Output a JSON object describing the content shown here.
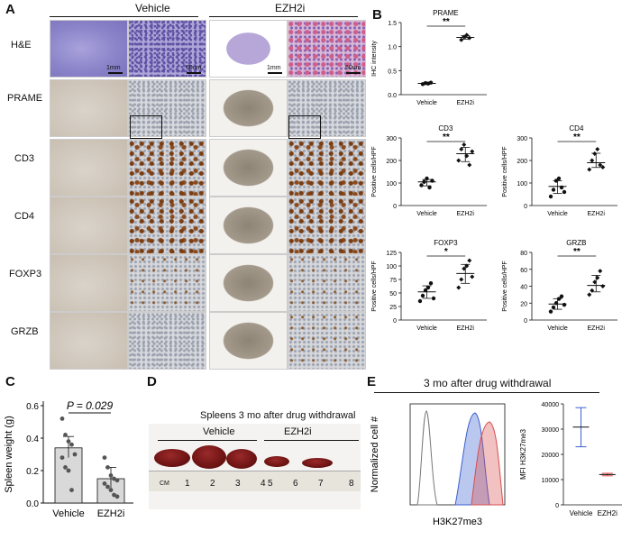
{
  "panelA": {
    "letter": "A",
    "groups": [
      "Vehicle",
      "EZH2i"
    ],
    "rows": [
      "H&E",
      "PRAME",
      "CD3",
      "CD4",
      "FOXP3",
      "GRZB"
    ],
    "scale_low": "1mm",
    "scale_high": "50um"
  },
  "panelB": {
    "letter": "B",
    "charts": [
      {
        "title": "PRAME",
        "ylabel": "IHC intensity",
        "yticks": [
          "0.0",
          "0.5",
          "1.0",
          "1.5"
        ],
        "ylim": [
          0,
          1.5
        ],
        "categories": [
          "Vehicle",
          "EZH2i"
        ],
        "sig": "**",
        "series": [
          {
            "values": [
              [
                0.22,
                0.24,
                0.23,
                0.25
              ],
              [
                1.14,
                1.2,
                1.24,
                1.18
              ]
            ]
          }
        ],
        "means": [
          0.235,
          1.19
        ]
      },
      {
        "title": "CD3",
        "ylabel": "Positive cells/HPF",
        "yticks": [
          "0",
          "100",
          "200",
          "300"
        ],
        "ylim": [
          0,
          300
        ],
        "categories": [
          "Vehicle",
          "EZH2i"
        ],
        "sig": "**",
        "points": [
          [
            90,
            105,
            120,
            80,
            110
          ],
          [
            200,
            250,
            270,
            220,
            180,
            240
          ]
        ],
        "means": [
          105,
          230
        ]
      },
      {
        "title": "CD4",
        "ylabel": "Positive cells/HPF",
        "yticks": [
          "0",
          "100",
          "200",
          "300"
        ],
        "ylim": [
          0,
          300
        ],
        "categories": [
          "Vehicle",
          "EZH2i"
        ],
        "sig": "**",
        "points": [
          [
            40,
            70,
            110,
            120,
            80,
            60
          ],
          [
            160,
            200,
            230,
            250,
            180,
            170
          ]
        ],
        "means": [
          85,
          190
        ]
      },
      {
        "title": "FOXP3",
        "ylabel": "Positive cells/HPF",
        "yticks": [
          "0",
          "25",
          "50",
          "75",
          "100",
          "125"
        ],
        "ylim": [
          0,
          125
        ],
        "categories": [
          "Vehicle",
          "EZH2i"
        ],
        "sig": "*",
        "points": [
          [
            35,
            45,
            55,
            60,
            68,
            40
          ],
          [
            60,
            75,
            95,
            100,
            110,
            80
          ]
        ],
        "means": [
          52,
          86
        ]
      },
      {
        "title": "GRZB",
        "ylabel": "Positive cells/HPF",
        "yticks": [
          "0",
          "20",
          "40",
          "60",
          "80"
        ],
        "ylim": [
          0,
          80
        ],
        "categories": [
          "Vehicle",
          "EZH2i"
        ],
        "sig": "**",
        "points": [
          [
            10,
            15,
            20,
            25,
            28,
            18
          ],
          [
            30,
            35,
            45,
            50,
            58,
            40
          ]
        ],
        "means": [
          19,
          41
        ]
      }
    ]
  },
  "panelC": {
    "letter": "C",
    "ylabel": "Spleen weight (g)",
    "pvalue_label": "P = 0.029",
    "yticks": [
      "0.0",
      "0.2",
      "0.4",
      "0.6"
    ],
    "ylim": [
      0,
      0.6
    ],
    "categories": [
      "Vehicle",
      "EZH2i"
    ],
    "bar_means": [
      0.34,
      0.15
    ],
    "points": [
      [
        0.52,
        0.42,
        0.38,
        0.36,
        0.3,
        0.28,
        0.22,
        0.2,
        0.08
      ],
      [
        0.28,
        0.22,
        0.17,
        0.15,
        0.14,
        0.12,
        0.1,
        0.08,
        0.05,
        0.04
      ]
    ]
  },
  "panelD": {
    "letter": "D",
    "title": "Spleens 3 mo after drug withdrawal",
    "groups": [
      "Vehicle",
      "EZH2i"
    ],
    "ruler_unit": "CM",
    "ruler_numbers": [
      "1",
      "2",
      "3",
      "4",
      "5",
      "6",
      "7",
      "8"
    ]
  },
  "panelE": {
    "letter": "E",
    "title": "3 mo after drug withdrawal",
    "hist_ylabel": "Normalized cell #",
    "hist_xlabel": "H3K27me3",
    "mfi_ylabel": "MFI H3K27me3",
    "mfi_yticks": [
      "0",
      "10000",
      "20000",
      "30000",
      "40000"
    ],
    "mfi_ylim": [
      0,
      40000
    ],
    "categories": [
      "Vehicle",
      "EZH2i"
    ],
    "mfi_means": [
      30800,
      12000
    ],
    "mfi_errors": [
      [
        23000,
        38500
      ],
      [
        11500,
        12500
      ]
    ],
    "colors": {
      "vehicle": "#3a5fcd",
      "ezh2i": "#d94c4c"
    }
  },
  "chart_data": [
    {
      "type": "scatter",
      "title": "PRAME",
      "ylabel": "IHC intensity",
      "categories": [
        "Vehicle",
        "EZH2i"
      ],
      "values": [
        0.235,
        1.19
      ],
      "ylim": [
        0,
        1.5
      ]
    },
    {
      "type": "scatter",
      "title": "CD3",
      "ylabel": "Positive cells/HPF",
      "categories": [
        "Vehicle",
        "EZH2i"
      ],
      "values": [
        105,
        230
      ],
      "ylim": [
        0,
        300
      ]
    },
    {
      "type": "scatter",
      "title": "CD4",
      "ylabel": "Positive cells/HPF",
      "categories": [
        "Vehicle",
        "EZH2i"
      ],
      "values": [
        85,
        190
      ],
      "ylim": [
        0,
        300
      ]
    },
    {
      "type": "scatter",
      "title": "FOXP3",
      "ylabel": "Positive cells/HPF",
      "categories": [
        "Vehicle",
        "EZH2i"
      ],
      "values": [
        52,
        86
      ],
      "ylim": [
        0,
        125
      ]
    },
    {
      "type": "scatter",
      "title": "GRZB",
      "ylabel": "Positive cells/HPF",
      "categories": [
        "Vehicle",
        "EZH2i"
      ],
      "values": [
        19,
        41
      ],
      "ylim": [
        0,
        80
      ]
    },
    {
      "type": "bar",
      "ylabel": "Spleen weight (g)",
      "categories": [
        "Vehicle",
        "EZH2i"
      ],
      "values": [
        0.34,
        0.15
      ],
      "ylim": [
        0,
        0.6
      ]
    },
    {
      "type": "scatter",
      "ylabel": "MFI H3K27me3",
      "categories": [
        "Vehicle",
        "EZH2i"
      ],
      "values": [
        30800,
        12000
      ],
      "ylim": [
        0,
        40000
      ]
    }
  ]
}
